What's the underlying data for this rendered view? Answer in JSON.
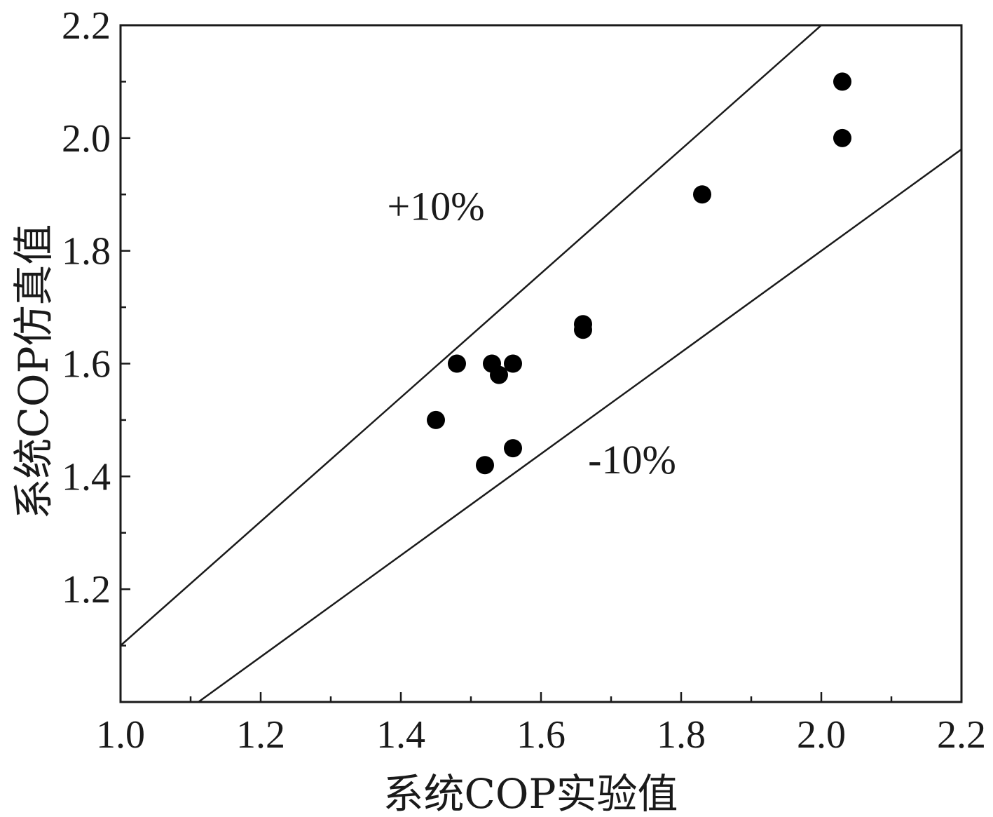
{
  "chart_data": {
    "type": "scatter",
    "title": "",
    "xlabel": "系统COP实验值",
    "ylabel": "系统COP仿真值",
    "xlim": [
      1.0,
      2.2
    ],
    "ylim": [
      1.0,
      2.2
    ],
    "x_major_ticks": [
      1.0,
      1.2,
      1.4,
      1.6,
      1.8,
      2.0,
      2.2
    ],
    "x_tick_labels": [
      "1.0",
      "1.2",
      "1.4",
      "1.6",
      "1.8",
      "2.0",
      "2.2"
    ],
    "y_major_ticks": [
      1.2,
      1.4,
      1.6,
      1.8,
      2.0,
      2.2
    ],
    "y_tick_labels": [
      "1.2",
      "1.4",
      "1.6",
      "1.8",
      "2.0",
      "2.2"
    ],
    "grid": false,
    "marker_color": "#000000",
    "series": [
      {
        "points": [
          {
            "x": 1.45,
            "y": 1.5
          },
          {
            "x": 1.48,
            "y": 1.6
          },
          {
            "x": 1.52,
            "y": 1.42
          },
          {
            "x": 1.53,
            "y": 1.6
          },
          {
            "x": 1.54,
            "y": 1.58
          },
          {
            "x": 1.56,
            "y": 1.6
          },
          {
            "x": 1.56,
            "y": 1.45
          },
          {
            "x": 1.66,
            "y": 1.66
          },
          {
            "x": 1.66,
            "y": 1.67
          },
          {
            "x": 1.83,
            "y": 1.9
          },
          {
            "x": 2.03,
            "y": 2.0
          },
          {
            "x": 2.03,
            "y": 2.1
          }
        ]
      }
    ],
    "reference_lines": [
      {
        "label": "+10%",
        "slope": 1.1
      },
      {
        "label": "-10%",
        "slope": 0.9
      }
    ],
    "annotations": [
      {
        "text": "+10%",
        "x": 1.45,
        "y": 1.88
      },
      {
        "text": "-10%",
        "x": 1.73,
        "y": 1.43
      }
    ]
  }
}
